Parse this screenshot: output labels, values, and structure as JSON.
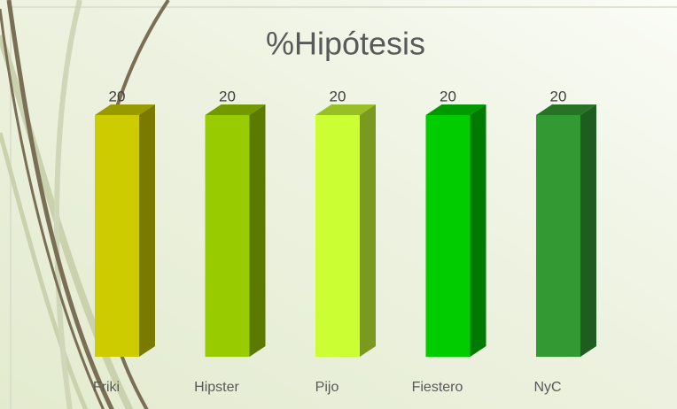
{
  "chart_data": {
    "type": "bar",
    "title": "%Hipótesis",
    "categories": [
      "Friki",
      "Hipster",
      "Pijo",
      "Fiestero",
      "NyC"
    ],
    "values": [
      20,
      20,
      20,
      20,
      20
    ],
    "colors": [
      "#cccc00",
      "#99cc00",
      "#ccff33",
      "#00cc00",
      "#339933"
    ]
  }
}
